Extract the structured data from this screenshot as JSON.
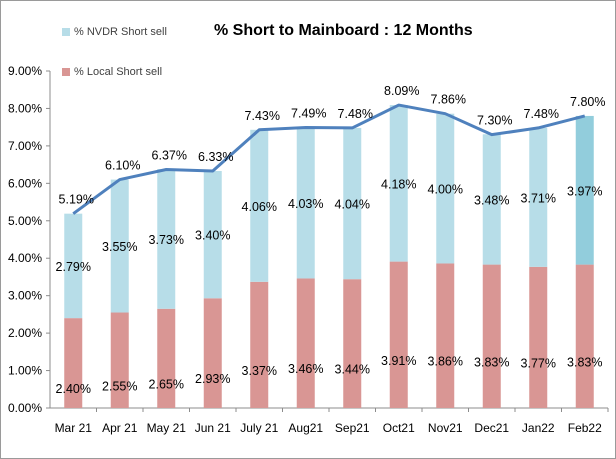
{
  "chart_data": {
    "type": "bar",
    "title": "% Short to Mainboard : 12 Months",
    "categories": [
      "Mar 21",
      "Apr 21",
      "May 21",
      "Jun 21",
      "July 21",
      "Aug21",
      "Sep21",
      "Oct21",
      "Nov21",
      "Dec21",
      "Jan22",
      "Feb22"
    ],
    "series": [
      {
        "name": "% Local Short sell",
        "color": "#d99694",
        "values": [
          2.4,
          2.55,
          2.65,
          2.93,
          3.37,
          3.46,
          3.44,
          3.91,
          3.86,
          3.83,
          3.77,
          3.83
        ],
        "labels": [
          "2.40%",
          "2.55%",
          "2.65%",
          "2.93%",
          "3.37%",
          "3.46%",
          "3.44%",
          "3.91%",
          "3.86%",
          "3.83%",
          "3.77%",
          "3.83%"
        ]
      },
      {
        "name": "% NVDR Short sell",
        "color": "#b7dde8",
        "highlight_color": "#92cddc",
        "values": [
          2.79,
          3.55,
          3.73,
          3.4,
          4.06,
          4.03,
          4.04,
          4.18,
          4.0,
          3.48,
          3.71,
          3.97
        ],
        "labels": [
          "2.79%",
          "3.55%",
          "3.73%",
          "3.40%",
          "4.06%",
          "4.03%",
          "4.04%",
          "4.18%",
          "4.00%",
          "3.48%",
          "3.71%",
          "3.97%"
        ]
      }
    ],
    "total": {
      "color": "#4f81bd",
      "values": [
        5.19,
        6.1,
        6.37,
        6.33,
        7.43,
        7.49,
        7.48,
        8.09,
        7.86,
        7.3,
        7.48,
        7.8
      ],
      "labels": [
        "5.19%",
        "6.10%",
        "6.37%",
        "6.33%",
        "7.43%",
        "7.49%",
        "7.48%",
        "8.09%",
        "7.86%",
        "7.30%",
        "7.48%",
        "7.80%"
      ]
    },
    "ylim": [
      0,
      9
    ],
    "yticks": [
      0,
      1,
      2,
      3,
      4,
      5,
      6,
      7,
      8,
      9
    ],
    "ytick_labels": [
      "0.00%",
      "1.00%",
      "2.00%",
      "3.00%",
      "4.00%",
      "5.00%",
      "6.00%",
      "7.00%",
      "8.00%",
      "9.00%"
    ],
    "xlabel": "",
    "ylabel": "",
    "grid": false,
    "legend": "top-left"
  }
}
